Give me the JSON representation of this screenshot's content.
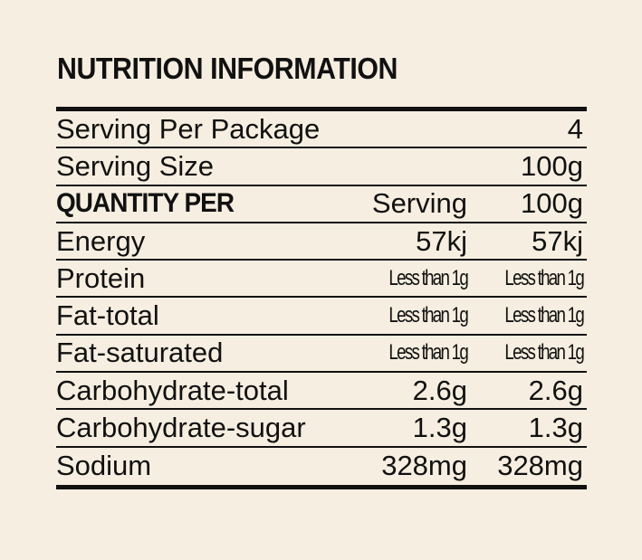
{
  "panel": {
    "title": "NUTRITION INFORMATION",
    "rows": [
      {
        "label": "Serving Per Package",
        "value": "4"
      },
      {
        "label": "Serving Size",
        "value": "100g"
      },
      {
        "label": "QUANTITY PER",
        "serving": "Serving",
        "per100": "100g"
      },
      {
        "label": "Energy",
        "serving": "57kj",
        "per100": "57kj"
      },
      {
        "label": "Protein",
        "serving": "Less than 1g",
        "per100": "Less than 1g"
      },
      {
        "label": "Fat-total",
        "serving": "Less than 1g",
        "per100": "Less than 1g"
      },
      {
        "label": "Fat-saturated",
        "serving": "Less than 1g",
        "per100": "Less than 1g"
      },
      {
        "label": "Carbohydrate-total",
        "serving": "2.6g",
        "per100": "2.6g"
      },
      {
        "label": "Carbohydrate-sugar",
        "serving": "1.3g",
        "per100": "1.3g"
      },
      {
        "label": "Sodium",
        "serving": "328mg",
        "per100": "328mg"
      }
    ]
  }
}
